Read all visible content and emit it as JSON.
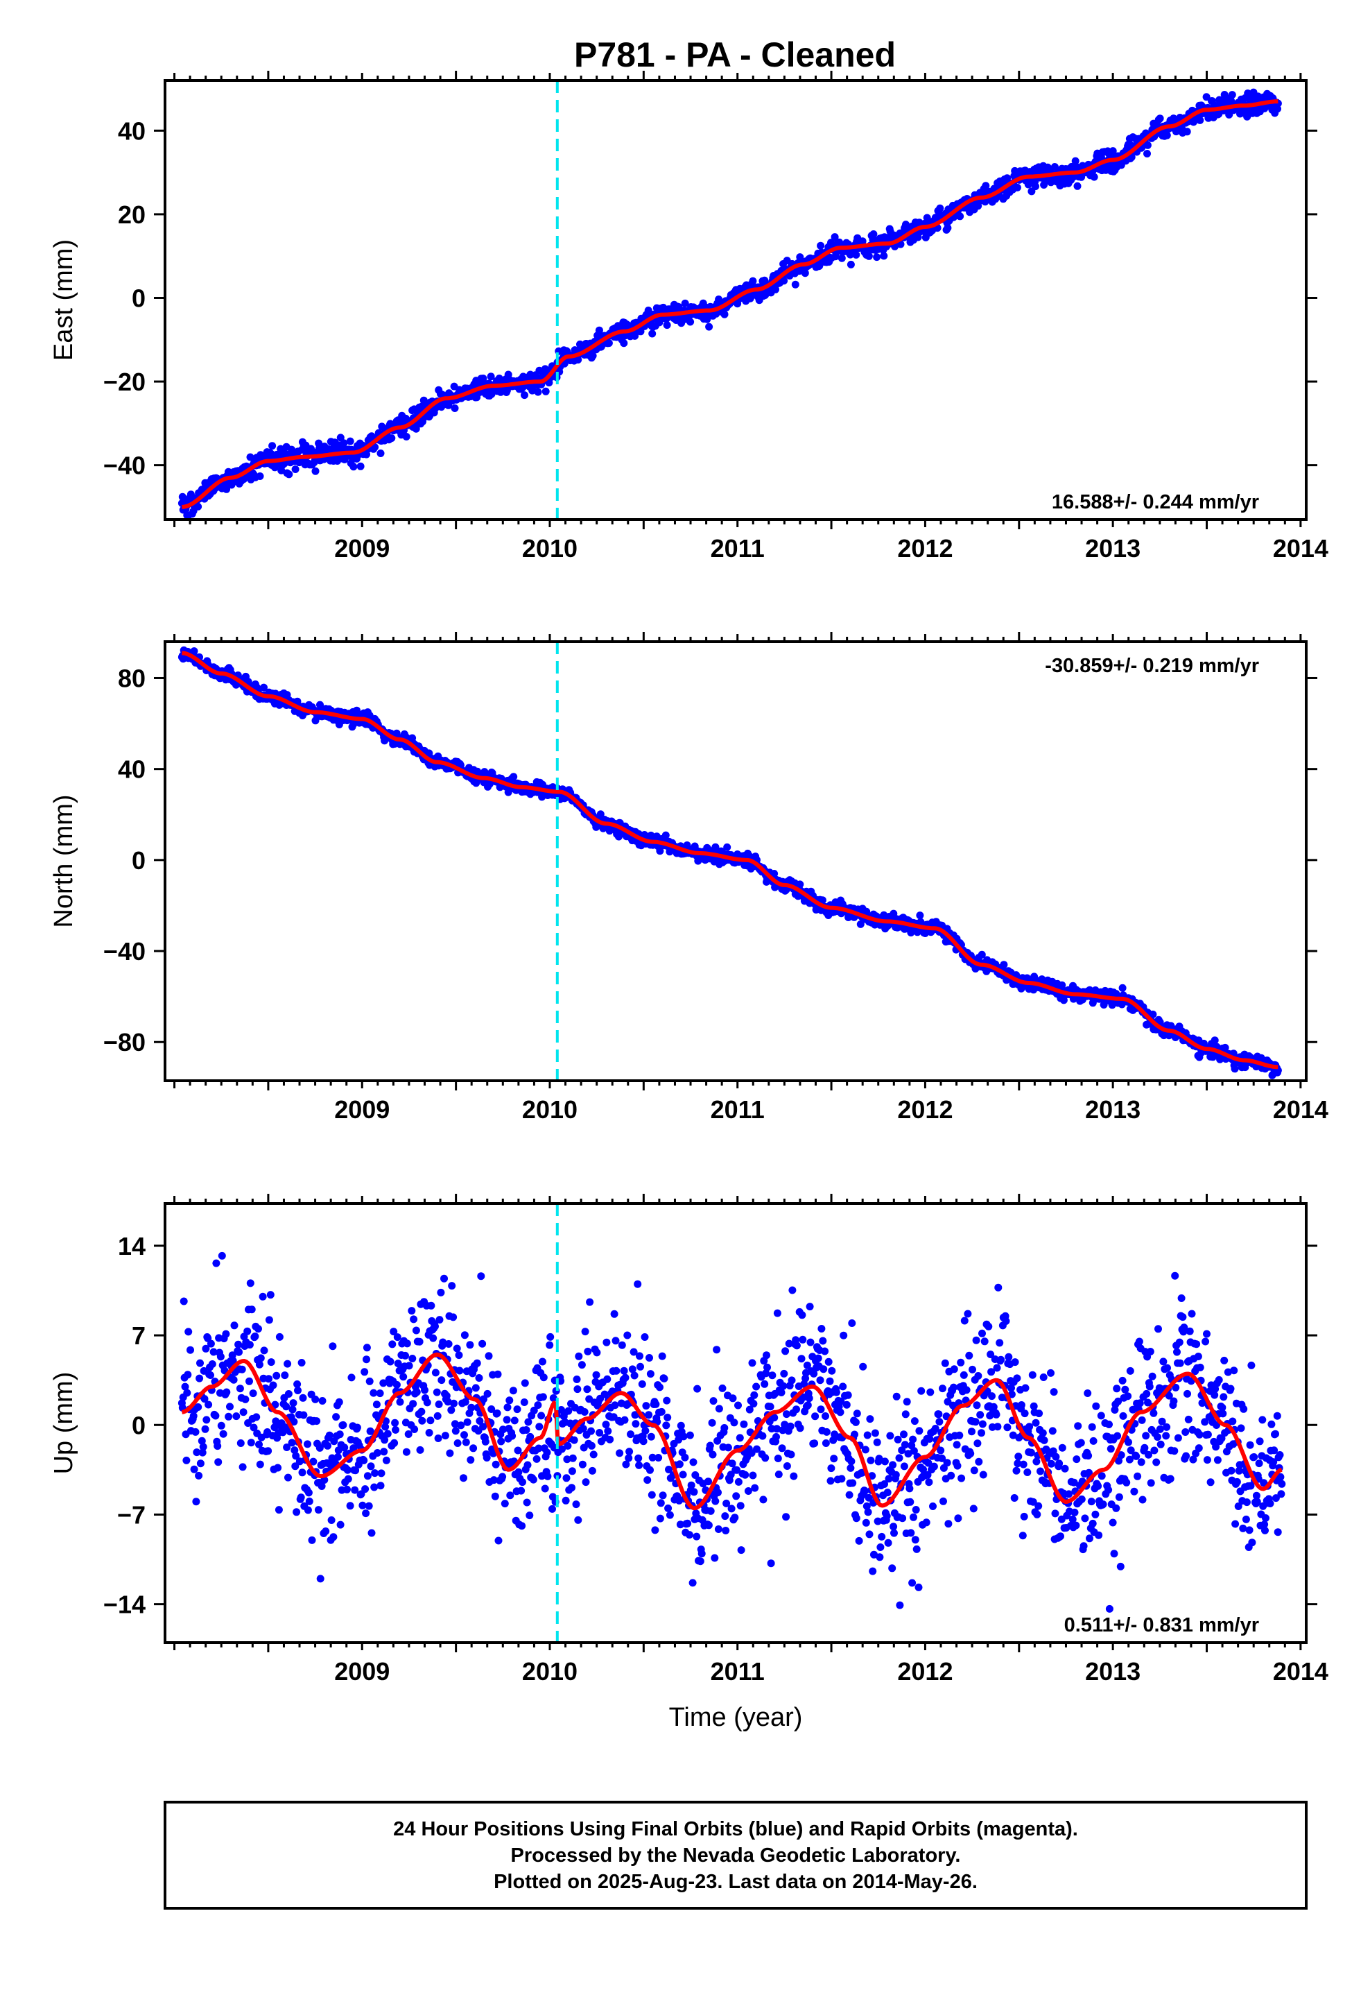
{
  "title": "P781  - PA - Cleaned",
  "footer": {
    "lines": [
      "24 Hour Positions Using Final Orbits (blue) and Rapid Orbits (magenta).",
      "Processed by the Nevada Geodetic Laboratory.",
      "Plotted on 2025-Aug-23. Last data on 2014-May-26."
    ]
  },
  "colors": {
    "points": "#0000ff",
    "fit": "#ff0000",
    "offset_line": "#00e5ee",
    "frame": "#000000"
  },
  "chart_data": [
    {
      "type": "scatter",
      "ylabel": "East (mm)",
      "xlabel": "",
      "xlim": [
        2008.45,
        2014.53
      ],
      "ylim": [
        -53,
        52
      ],
      "xticks": [
        2009,
        2010,
        2011,
        2012,
        2013,
        2014
      ],
      "yticks": [
        -40,
        -20,
        0,
        20,
        40
      ],
      "rate_text": "16.588+/- 0.244 mm/yr",
      "rate_position": "bottom-right",
      "offset_epoch": 2010.54,
      "fit_knots": {
        "x": [
          2008.54,
          2008.8,
          2009.0,
          2009.2,
          2009.45,
          2009.7,
          2009.95,
          2010.2,
          2010.45,
          2010.6,
          2010.9,
          2011.1,
          2011.35,
          2011.6,
          2011.85,
          2012.05,
          2012.3,
          2012.5,
          2012.8,
          2013.05,
          2013.3,
          2013.5,
          2013.8,
          2014.0,
          2014.2,
          2014.38
        ],
        "y": [
          -50,
          -43,
          -39,
          -38,
          -37,
          -31,
          -24,
          -21,
          -20,
          -14,
          -8,
          -4,
          -3,
          2,
          8,
          12,
          13,
          17,
          24,
          29,
          30,
          33,
          41,
          45,
          46,
          47
        ]
      },
      "scatter_noise_mm": 1.3,
      "series": [
        {
          "name": "",
          "marker": "dot"
        }
      ]
    },
    {
      "type": "scatter",
      "ylabel": "North (mm)",
      "xlabel": "",
      "xlim": [
        2008.45,
        2014.53
      ],
      "ylim": [
        -97,
        96
      ],
      "xticks": [
        2009,
        2010,
        2011,
        2012,
        2013,
        2014
      ],
      "yticks": [
        -80,
        -40,
        0,
        40,
        80
      ],
      "rate_text": "-30.859+/- 0.219 mm/yr",
      "rate_position": "top-right",
      "offset_epoch": 2010.54,
      "fit_knots": {
        "x": [
          2008.54,
          2008.75,
          2009.0,
          2009.25,
          2009.5,
          2009.7,
          2009.9,
          2010.15,
          2010.35,
          2010.55,
          2010.8,
          2011.05,
          2011.3,
          2011.55,
          2011.75,
          2012.0,
          2012.3,
          2012.55,
          2012.8,
          2013.05,
          2013.3,
          2013.55,
          2013.8,
          2014.0,
          2014.2,
          2014.38
        ],
        "y": [
          91,
          82,
          72,
          65,
          62,
          53,
          43,
          36,
          32,
          30,
          16,
          8,
          3,
          0,
          -11,
          -21,
          -27,
          -30,
          -46,
          -54,
          -59,
          -61,
          -75,
          -83,
          -88,
          -91
        ]
      },
      "scatter_noise_mm": 1.5,
      "series": [
        {
          "name": "",
          "marker": "dot"
        }
      ]
    },
    {
      "type": "scatter",
      "ylabel": "Up (mm)",
      "xlabel": "Time (year)",
      "xlim": [
        2008.45,
        2014.53
      ],
      "ylim": [
        -17,
        17.3
      ],
      "xticks": [
        2009,
        2010,
        2011,
        2012,
        2013,
        2014
      ],
      "yticks": [
        -14,
        -7,
        0,
        7,
        14
      ],
      "rate_text": "0.511+/- 0.831 mm/yr",
      "rate_position": "bottom-right",
      "offset_epoch": 2010.54,
      "fit_knots": {
        "x": [
          2008.54,
          2008.7,
          2008.87,
          2009.05,
          2009.28,
          2009.5,
          2009.7,
          2009.9,
          2010.1,
          2010.28,
          2010.45,
          2010.53,
          2010.545,
          2010.7,
          2010.88,
          2011.05,
          2011.27,
          2011.5,
          2011.7,
          2011.9,
          2012.1,
          2012.27,
          2012.5,
          2012.7,
          2012.88,
          2013.05,
          2013.25,
          2013.45,
          2013.65,
          2013.9,
          2014.1,
          2014.3,
          2014.4
        ],
        "y": [
          1,
          3,
          5,
          1,
          -4,
          -2,
          2.5,
          5.5,
          2,
          -3.5,
          -1,
          1.8,
          -1.5,
          0.5,
          2.5,
          0,
          -6.5,
          -2,
          1,
          3,
          -1,
          -6.3,
          -2.5,
          1.5,
          3.5,
          -1,
          -6,
          -3.5,
          1,
          4,
          0,
          -5,
          -3.5
        ]
      },
      "scatter_noise_mm": 3.3,
      "series": [
        {
          "name": "",
          "marker": "dot"
        }
      ]
    }
  ]
}
